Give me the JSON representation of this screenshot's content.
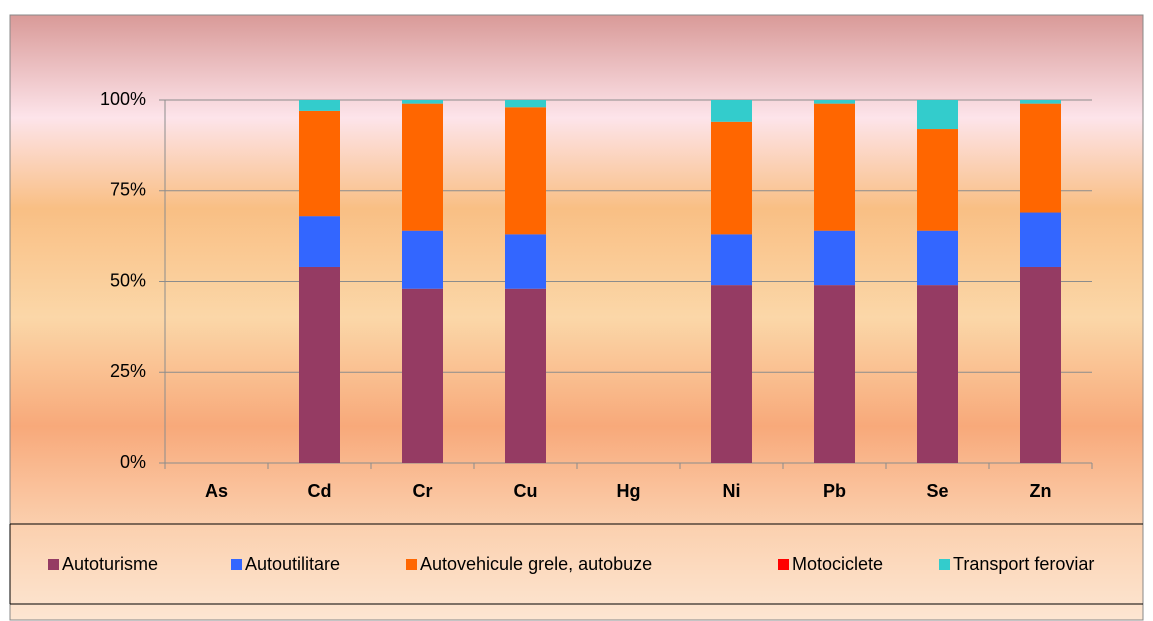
{
  "chart_data": {
    "type": "stacked_bar",
    "categories": [
      "As",
      "Cd",
      "Cr",
      "Cu",
      "Hg",
      "Ni",
      "Pb",
      "Se",
      "Zn"
    ],
    "series": [
      {
        "name": "Autoturisme",
        "color": "#953b63",
        "values": [
          0,
          54,
          48,
          48,
          0,
          49,
          49,
          49,
          54
        ]
      },
      {
        "name": "Autoutilitare",
        "color": "#3366ff",
        "values": [
          0,
          14,
          16,
          15,
          0,
          14,
          15,
          15,
          15
        ]
      },
      {
        "name": "Autovehicule grele, autobuze",
        "color": "#ff6600",
        "values": [
          0,
          29,
          35,
          35,
          0,
          31,
          35,
          28,
          30
        ]
      },
      {
        "name": "Motociclete",
        "color": "#ff0000",
        "values": [
          0,
          0,
          0,
          0,
          0,
          0,
          0,
          0,
          0
        ]
      },
      {
        "name": "Transport feroviar",
        "color": "#33cccc",
        "values": [
          0,
          3,
          1,
          2,
          0,
          6,
          1,
          8,
          1
        ]
      }
    ],
    "ylim": [
      0,
      100
    ],
    "yticks": [
      {
        "value": 0,
        "label": "0%"
      },
      {
        "value": 25,
        "label": "25%"
      },
      {
        "value": 50,
        "label": "50%"
      },
      {
        "value": 75,
        "label": "75%"
      },
      {
        "value": 100,
        "label": "100%"
      }
    ],
    "grid": true,
    "legend": "bottom"
  }
}
